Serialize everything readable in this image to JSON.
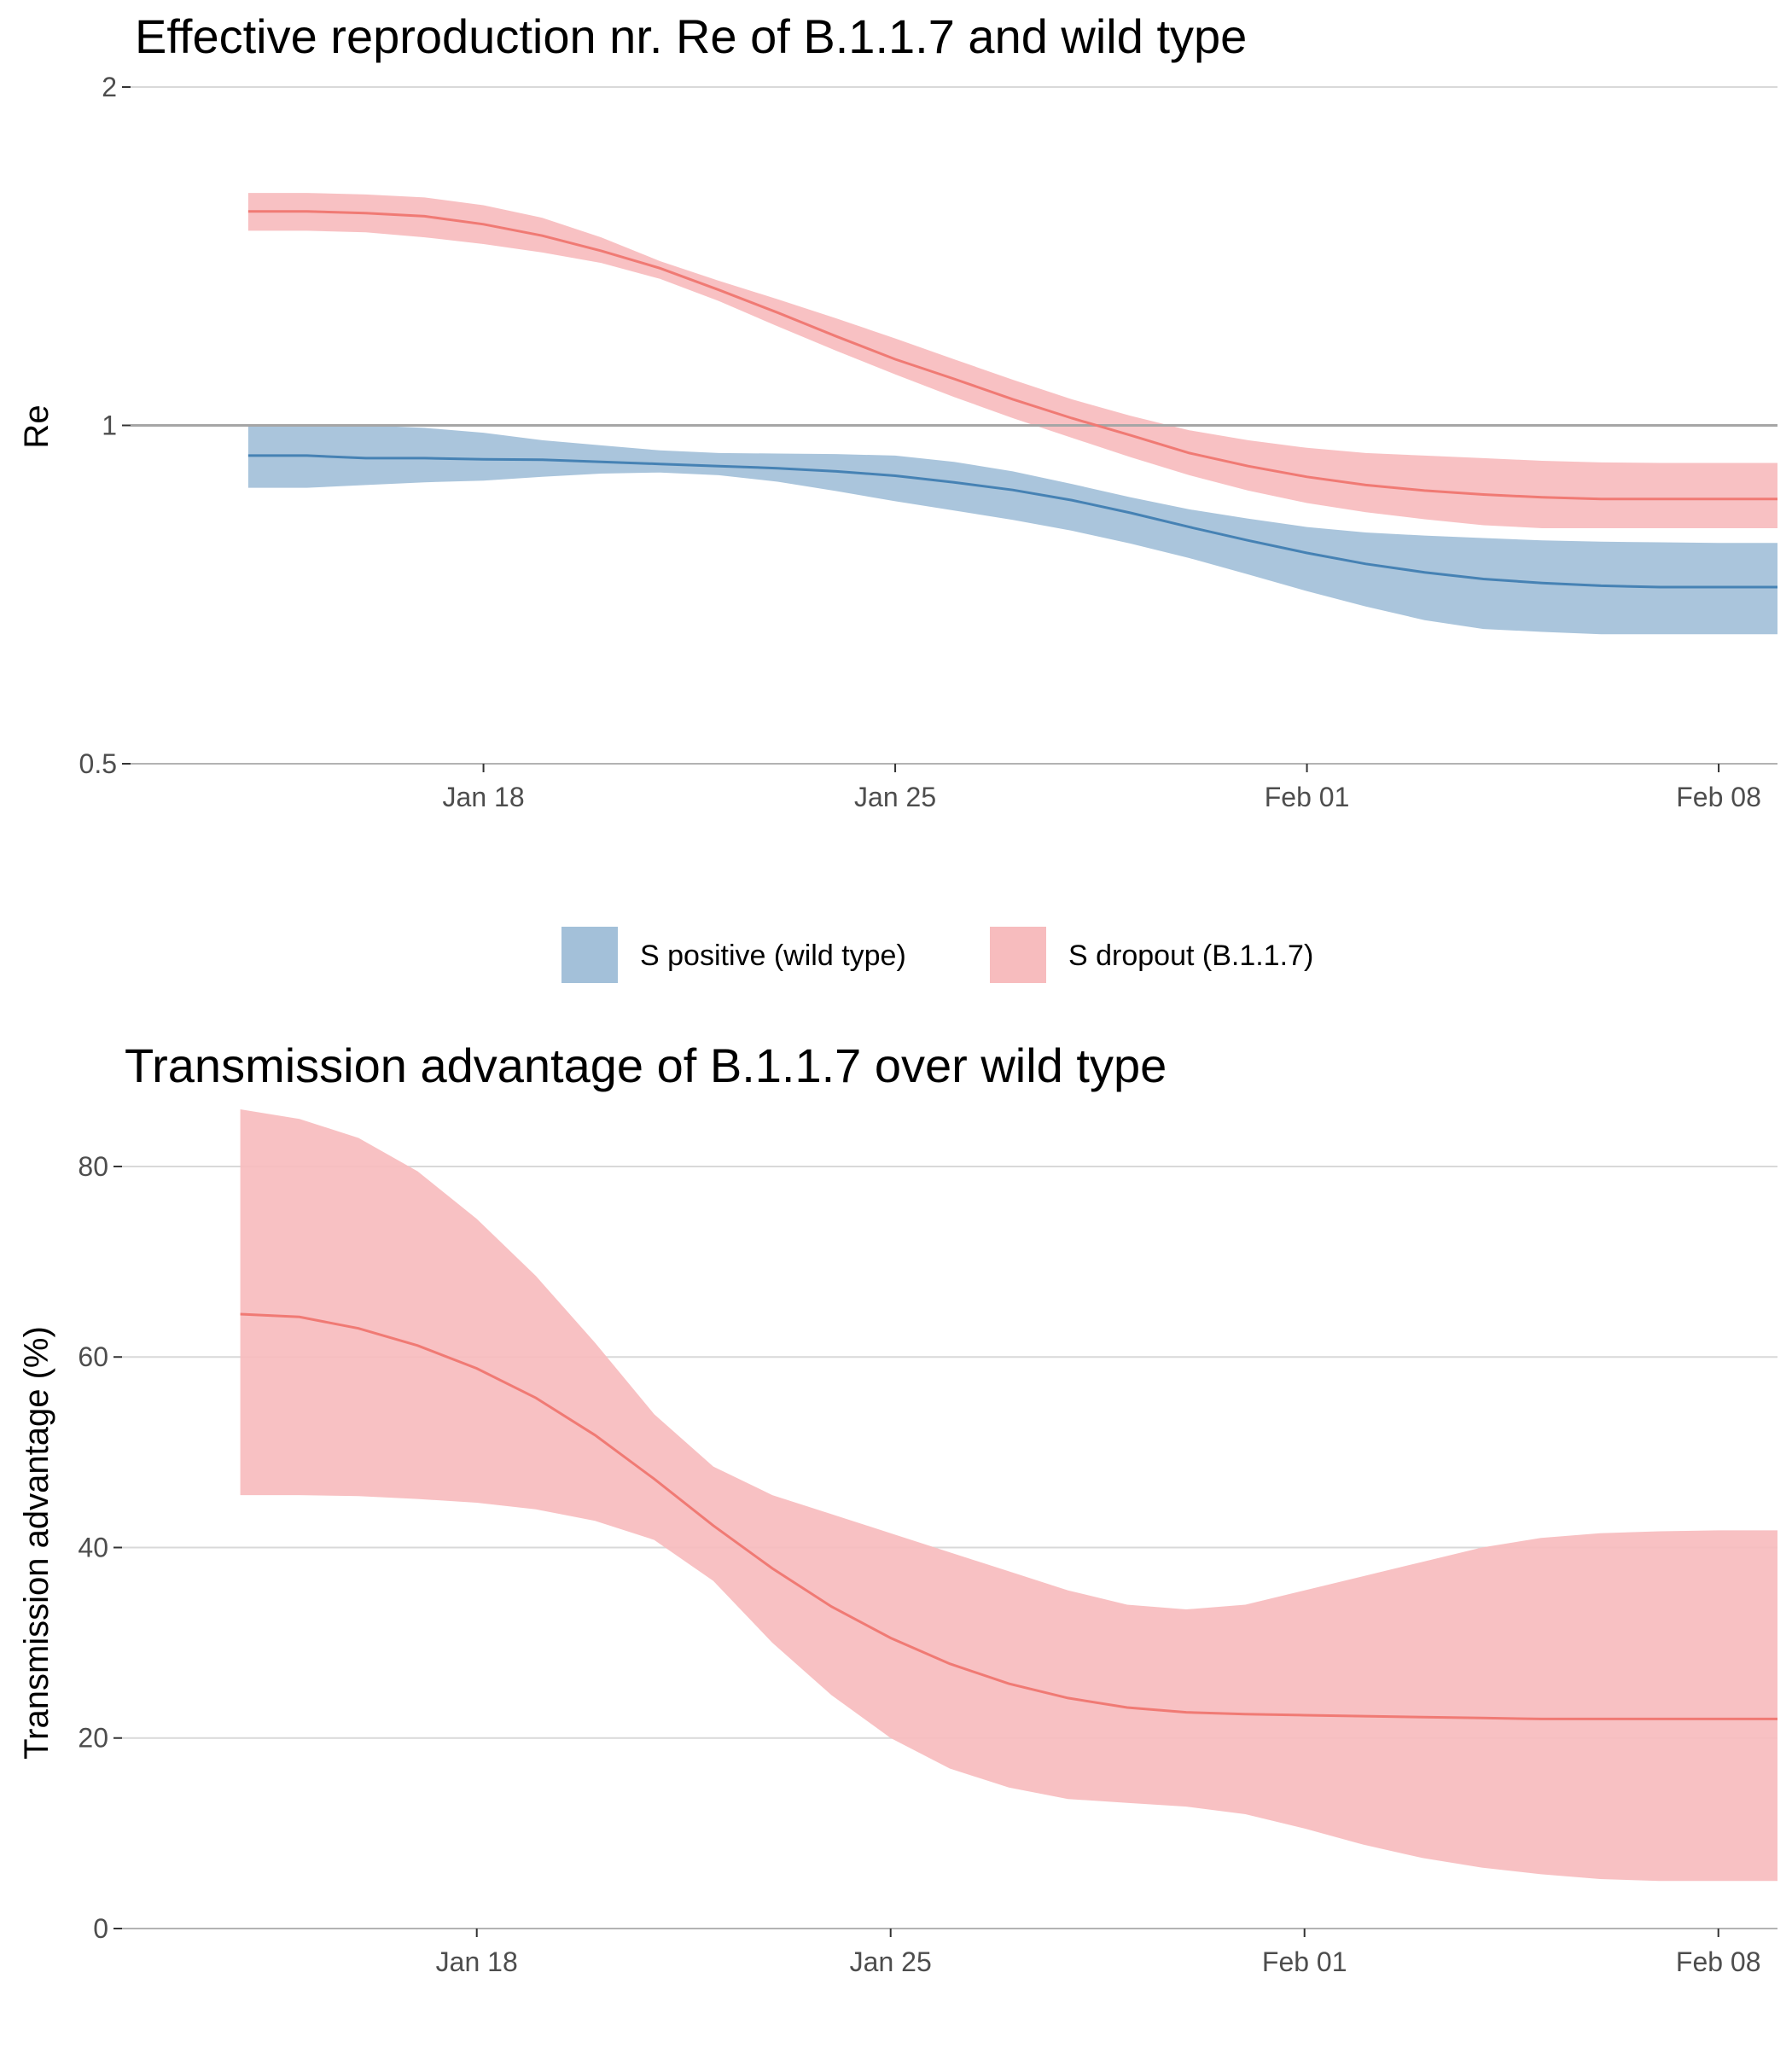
{
  "chart_data": [
    {
      "type": "area",
      "title": "Effective reproduction nr. Re of B.1.1.7 and wild type",
      "xlabel": "",
      "ylabel": "Re",
      "y_scale": "log2",
      "ylim": [
        0.5,
        2
      ],
      "y_ticks": [
        0.5,
        1,
        2
      ],
      "y_tick_labels": [
        "0.5",
        "1",
        "2"
      ],
      "x_range": [
        "2021-01-12",
        "2021-02-09"
      ],
      "x_ticks": [
        "2021-01-18",
        "2021-01-25",
        "2021-02-01",
        "2021-02-08"
      ],
      "x_tick_labels": [
        "Jan 18",
        "Jan 25",
        "Feb 01",
        "Feb 08"
      ],
      "grid": true,
      "reference_line": 1,
      "x": [
        "2021-01-14",
        "2021-01-15",
        "2021-01-16",
        "2021-01-17",
        "2021-01-18",
        "2021-01-19",
        "2021-01-20",
        "2021-01-21",
        "2021-01-22",
        "2021-01-23",
        "2021-01-24",
        "2021-01-25",
        "2021-01-26",
        "2021-01-27",
        "2021-01-28",
        "2021-01-29",
        "2021-01-30",
        "2021-01-31",
        "2021-02-01",
        "2021-02-02",
        "2021-02-03",
        "2021-02-04",
        "2021-02-05",
        "2021-02-06",
        "2021-02-07",
        "2021-02-08",
        "2021-02-09"
      ],
      "series": [
        {
          "name": "S positive (wild type)",
          "color": "#4682b4",
          "fill": "#a3c0d9",
          "mean": [
            0.94,
            0.94,
            0.935,
            0.935,
            0.933,
            0.932,
            0.928,
            0.924,
            0.92,
            0.916,
            0.91,
            0.902,
            0.89,
            0.876,
            0.858,
            0.836,
            0.812,
            0.79,
            0.77,
            0.753,
            0.74,
            0.73,
            0.724,
            0.72,
            0.718,
            0.718,
            0.718
          ],
          "lower": [
            0.88,
            0.88,
            0.885,
            0.89,
            0.893,
            0.9,
            0.906,
            0.908,
            0.903,
            0.891,
            0.874,
            0.856,
            0.84,
            0.824,
            0.806,
            0.785,
            0.762,
            0.737,
            0.712,
            0.69,
            0.671,
            0.659,
            0.655,
            0.652,
            0.652,
            0.652,
            0.652
          ],
          "upper": [
            1.0,
            1.0,
            1.0,
            0.995,
            0.985,
            0.97,
            0.96,
            0.95,
            0.945,
            0.944,
            0.943,
            0.94,
            0.928,
            0.91,
            0.887,
            0.863,
            0.842,
            0.826,
            0.812,
            0.803,
            0.798,
            0.794,
            0.79,
            0.788,
            0.787,
            0.786,
            0.786
          ]
        },
        {
          "name": "S dropout (B.1.1.7)",
          "color": "#f07a74",
          "fill": "#f7bcbe",
          "mean": [
            1.55,
            1.55,
            1.545,
            1.535,
            1.51,
            1.475,
            1.43,
            1.38,
            1.32,
            1.26,
            1.2,
            1.145,
            1.1,
            1.055,
            1.015,
            0.98,
            0.945,
            0.92,
            0.9,
            0.885,
            0.875,
            0.868,
            0.863,
            0.86,
            0.86,
            0.86,
            0.86
          ],
          "lower": [
            1.49,
            1.49,
            1.485,
            1.47,
            1.45,
            1.425,
            1.395,
            1.35,
            1.29,
            1.225,
            1.165,
            1.11,
            1.06,
            1.015,
            0.975,
            0.937,
            0.903,
            0.875,
            0.853,
            0.837,
            0.825,
            0.815,
            0.81,
            0.81,
            0.81,
            0.81,
            0.81
          ],
          "upper": [
            1.61,
            1.61,
            1.605,
            1.595,
            1.57,
            1.53,
            1.47,
            1.4,
            1.345,
            1.295,
            1.245,
            1.195,
            1.145,
            1.098,
            1.055,
            1.02,
            0.99,
            0.97,
            0.955,
            0.945,
            0.94,
            0.935,
            0.93,
            0.927,
            0.926,
            0.926,
            0.926
          ]
        }
      ]
    },
    {
      "type": "area",
      "title": "Transmission advantage of B.1.1.7 over wild type",
      "xlabel": "",
      "ylabel": "Transmission advantage (%)",
      "ylim": [
        0,
        86
      ],
      "y_ticks": [
        0,
        20,
        40,
        60,
        80
      ],
      "y_tick_labels": [
        "0",
        "20",
        "40",
        "60",
        "80"
      ],
      "x_range": [
        "2021-01-12",
        "2021-02-09"
      ],
      "x_ticks": [
        "2021-01-18",
        "2021-01-25",
        "2021-02-01",
        "2021-02-08"
      ],
      "x_tick_labels": [
        "Jan 18",
        "Jan 25",
        "Feb 01",
        "Feb 08"
      ],
      "grid": true,
      "x": [
        "2021-01-14",
        "2021-01-15",
        "2021-01-16",
        "2021-01-17",
        "2021-01-18",
        "2021-01-19",
        "2021-01-20",
        "2021-01-21",
        "2021-01-22",
        "2021-01-23",
        "2021-01-24",
        "2021-01-25",
        "2021-01-26",
        "2021-01-27",
        "2021-01-28",
        "2021-01-29",
        "2021-01-30",
        "2021-01-31",
        "2021-02-01",
        "2021-02-02",
        "2021-02-03",
        "2021-02-04",
        "2021-02-05",
        "2021-02-06",
        "2021-02-07",
        "2021-02-08",
        "2021-02-09"
      ],
      "series": [
        {
          "name": "S dropout (B.1.1.7)",
          "color": "#f07a74",
          "fill": "#f7bcbe",
          "mean": [
            64.5,
            64.2,
            63.0,
            61.2,
            58.8,
            55.7,
            51.8,
            47.2,
            42.3,
            37.8,
            33.8,
            30.5,
            27.8,
            25.7,
            24.2,
            23.2,
            22.7,
            22.5,
            22.4,
            22.3,
            22.2,
            22.1,
            22.0,
            22.0,
            22.0,
            22.0,
            22.0
          ],
          "lower": [
            45.5,
            45.5,
            45.4,
            45.1,
            44.7,
            44.0,
            42.8,
            40.8,
            36.5,
            30.0,
            24.5,
            20.0,
            16.8,
            14.8,
            13.6,
            13.2,
            12.8,
            12.0,
            10.5,
            8.8,
            7.4,
            6.4,
            5.7,
            5.2,
            5.0,
            5.0,
            5.0
          ],
          "upper": [
            86.0,
            85.0,
            83.0,
            79.5,
            74.5,
            68.5,
            61.5,
            54.0,
            48.5,
            45.5,
            43.5,
            41.5,
            39.5,
            37.5,
            35.5,
            34.0,
            33.5,
            34.0,
            35.5,
            37.0,
            38.5,
            40.0,
            41.0,
            41.5,
            41.7,
            41.8,
            41.8
          ]
        }
      ]
    }
  ],
  "legend": [
    {
      "label": "S positive (wild type)",
      "fill": "#a3c0d9"
    },
    {
      "label": "S dropout (B.1.1.7)",
      "fill": "#f7bcbe"
    }
  ]
}
